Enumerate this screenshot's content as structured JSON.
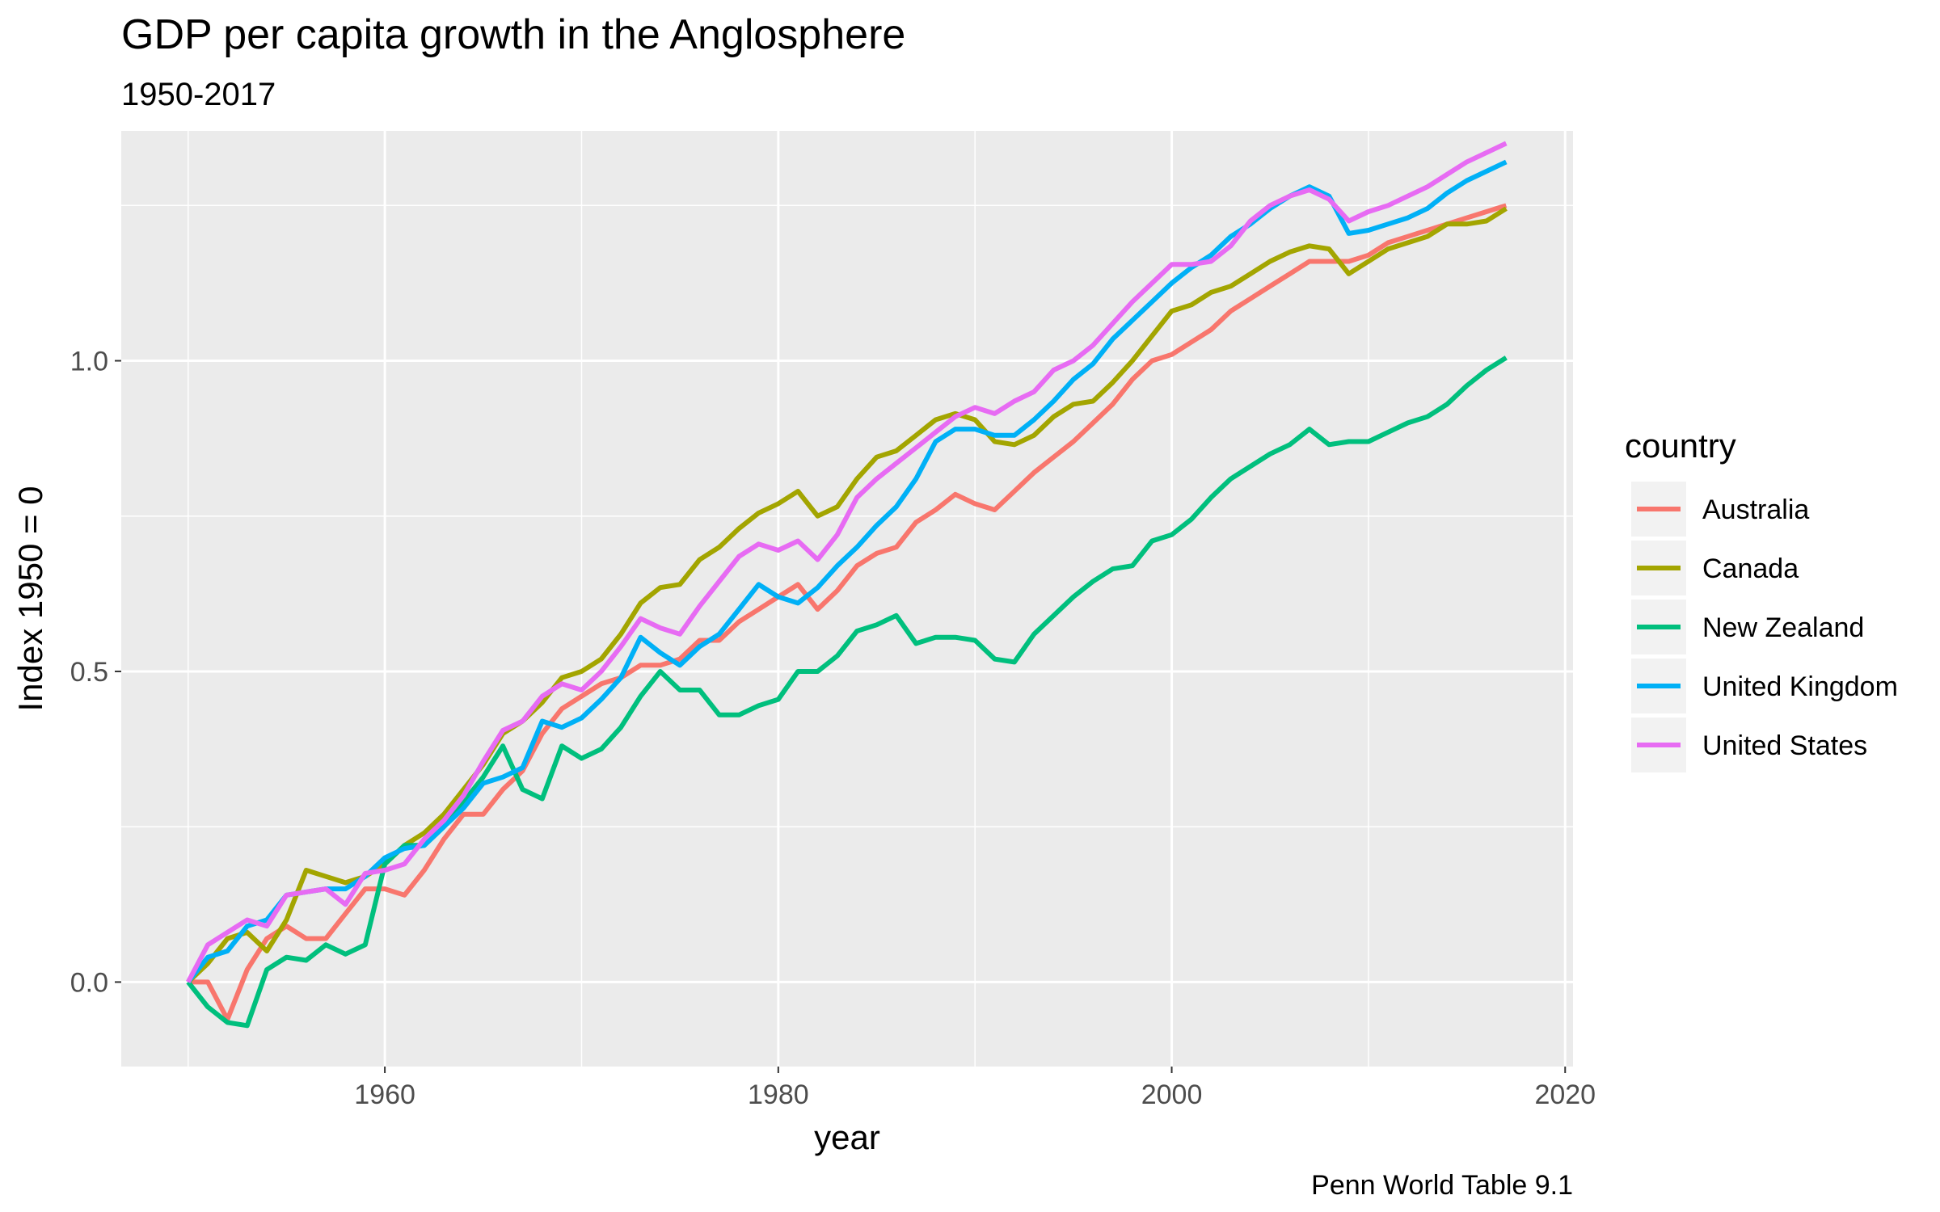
{
  "chart_data": {
    "type": "line",
    "title": "GDP per capita growth in the Anglosphere",
    "subtitle": "1950-2017",
    "xlabel": "year",
    "ylabel": "Index 1950 = 0",
    "caption": "Penn World Table 9.1",
    "xlim": [
      1946.6,
      2020.4
    ],
    "ylim": [
      -0.136,
      1.37
    ],
    "x_ticks": [
      1960,
      1980,
      2000,
      2020
    ],
    "x_tick_labels": [
      "1960",
      "1980",
      "2000",
      "2020"
    ],
    "y_ticks": [
      0.0,
      0.5,
      1.0
    ],
    "y_tick_labels": [
      "0.0",
      "0.5",
      "1.0"
    ],
    "grid": true,
    "legend": {
      "title": "country",
      "position": "right"
    },
    "x": [
      1950,
      1951,
      1952,
      1953,
      1954,
      1955,
      1956,
      1957,
      1958,
      1959,
      1960,
      1961,
      1962,
      1963,
      1964,
      1965,
      1966,
      1967,
      1968,
      1969,
      1970,
      1971,
      1972,
      1973,
      1974,
      1975,
      1976,
      1977,
      1978,
      1979,
      1980,
      1981,
      1982,
      1983,
      1984,
      1985,
      1986,
      1987,
      1988,
      1989,
      1990,
      1991,
      1992,
      1993,
      1994,
      1995,
      1996,
      1997,
      1998,
      1999,
      2000,
      2001,
      2002,
      2003,
      2004,
      2005,
      2006,
      2007,
      2008,
      2009,
      2010,
      2011,
      2012,
      2013,
      2014,
      2015,
      2016,
      2017
    ],
    "series": [
      {
        "name": "Australia",
        "color": "#F8766D",
        "values": [
          0,
          0,
          -0.06,
          0.02,
          0.07,
          0.09,
          0.07,
          0.07,
          0.11,
          0.15,
          0.15,
          0.14,
          0.18,
          0.23,
          0.27,
          0.27,
          0.31,
          0.34,
          0.4,
          0.44,
          0.46,
          0.48,
          0.49,
          0.51,
          0.51,
          0.52,
          0.55,
          0.55,
          0.58,
          0.6,
          0.62,
          0.64,
          0.6,
          0.63,
          0.67,
          0.69,
          0.7,
          0.74,
          0.76,
          0.785,
          0.77,
          0.76,
          0.79,
          0.82,
          0.845,
          0.87,
          0.9,
          0.93,
          0.97,
          1.0,
          1.01,
          1.03,
          1.05,
          1.08,
          1.1,
          1.12,
          1.14,
          1.16,
          1.16,
          1.16,
          1.17,
          1.19,
          1.2,
          1.21,
          1.22,
          1.23,
          1.24,
          1.25
        ]
      },
      {
        "name": "Canada",
        "color": "#A3A500",
        "values": [
          0,
          0.03,
          0.07,
          0.08,
          0.05,
          0.1,
          0.18,
          0.17,
          0.16,
          0.17,
          0.19,
          0.22,
          0.24,
          0.27,
          0.31,
          0.35,
          0.4,
          0.42,
          0.45,
          0.49,
          0.5,
          0.52,
          0.56,
          0.61,
          0.635,
          0.64,
          0.68,
          0.7,
          0.73,
          0.755,
          0.77,
          0.79,
          0.75,
          0.765,
          0.81,
          0.845,
          0.855,
          0.88,
          0.905,
          0.915,
          0.905,
          0.87,
          0.865,
          0.88,
          0.91,
          0.93,
          0.935,
          0.965,
          1.0,
          1.04,
          1.08,
          1.09,
          1.11,
          1.12,
          1.14,
          1.16,
          1.175,
          1.185,
          1.18,
          1.14,
          1.16,
          1.18,
          1.19,
          1.2,
          1.22,
          1.22,
          1.225,
          1.245
        ]
      },
      {
        "name": "New Zealand",
        "color": "#00BF7D",
        "values": [
          0,
          -0.04,
          -0.065,
          -0.07,
          0.02,
          0.04,
          0.035,
          0.06,
          0.045,
          0.06,
          0.19,
          0.22,
          0.22,
          0.25,
          0.29,
          0.33,
          0.38,
          0.31,
          0.295,
          0.38,
          0.36,
          0.375,
          0.41,
          0.46,
          0.5,
          0.47,
          0.47,
          0.43,
          0.43,
          0.445,
          0.455,
          0.5,
          0.5,
          0.525,
          0.565,
          0.575,
          0.59,
          0.545,
          0.555,
          0.555,
          0.55,
          0.52,
          0.515,
          0.56,
          0.59,
          0.62,
          0.645,
          0.665,
          0.67,
          0.71,
          0.72,
          0.745,
          0.78,
          0.81,
          0.83,
          0.85,
          0.865,
          0.89,
          0.865,
          0.87,
          0.87,
          0.885,
          0.9,
          0.91,
          0.93,
          0.96,
          0.985,
          1.005
        ]
      },
      {
        "name": "United Kingdom",
        "color": "#00B0F6",
        "values": [
          0,
          0.04,
          0.05,
          0.09,
          0.1,
          0.14,
          0.145,
          0.15,
          0.15,
          0.17,
          0.2,
          0.215,
          0.22,
          0.25,
          0.28,
          0.32,
          0.33,
          0.345,
          0.42,
          0.41,
          0.425,
          0.455,
          0.49,
          0.555,
          0.53,
          0.51,
          0.54,
          0.56,
          0.6,
          0.64,
          0.62,
          0.61,
          0.635,
          0.67,
          0.7,
          0.735,
          0.765,
          0.81,
          0.87,
          0.89,
          0.89,
          0.88,
          0.88,
          0.905,
          0.935,
          0.97,
          0.995,
          1.035,
          1.065,
          1.095,
          1.125,
          1.15,
          1.17,
          1.2,
          1.22,
          1.245,
          1.265,
          1.28,
          1.265,
          1.205,
          1.21,
          1.22,
          1.23,
          1.245,
          1.27,
          1.29,
          1.305,
          1.32
        ]
      },
      {
        "name": "United States",
        "color": "#E76BF3",
        "values": [
          0,
          0.06,
          0.08,
          0.1,
          0.09,
          0.14,
          0.145,
          0.15,
          0.125,
          0.175,
          0.18,
          0.19,
          0.23,
          0.26,
          0.3,
          0.355,
          0.405,
          0.42,
          0.46,
          0.48,
          0.47,
          0.5,
          0.54,
          0.585,
          0.57,
          0.56,
          0.605,
          0.645,
          0.685,
          0.705,
          0.695,
          0.71,
          0.68,
          0.72,
          0.78,
          0.81,
          0.835,
          0.86,
          0.885,
          0.91,
          0.925,
          0.915,
          0.935,
          0.95,
          0.985,
          1.0,
          1.025,
          1.06,
          1.095,
          1.125,
          1.155,
          1.155,
          1.16,
          1.185,
          1.225,
          1.25,
          1.265,
          1.275,
          1.26,
          1.225,
          1.24,
          1.25,
          1.265,
          1.28,
          1.3,
          1.32,
          1.335,
          1.35
        ]
      }
    ]
  }
}
